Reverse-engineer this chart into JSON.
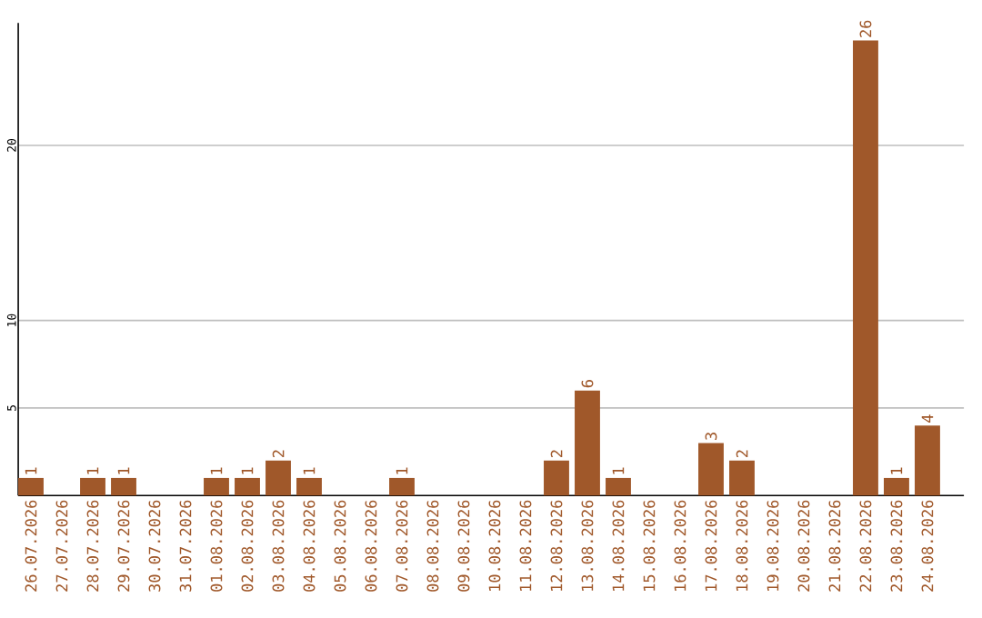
{
  "chart_data": {
    "type": "bar",
    "categories": [
      "26.07.2026",
      "27.07.2026",
      "28.07.2026",
      "29.07.2026",
      "30.07.2026",
      "31.07.2026",
      "01.08.2026",
      "02.08.2026",
      "03.08.2026",
      "04.08.2026",
      "05.08.2026",
      "06.08.2026",
      "07.08.2026",
      "08.08.2026",
      "09.08.2026",
      "10.08.2026",
      "11.08.2026",
      "12.08.2026",
      "13.08.2026",
      "14.08.2026",
      "15.08.2026",
      "16.08.2026",
      "17.08.2026",
      "18.08.2026",
      "19.08.2026",
      "20.08.2026",
      "21.08.2026",
      "22.08.2026",
      "23.08.2026",
      "24.08.2026"
    ],
    "values": [
      1,
      0,
      1,
      1,
      0,
      0,
      1,
      1,
      2,
      1,
      0,
      0,
      1,
      0,
      0,
      0,
      0,
      2,
      6,
      1,
      0,
      0,
      3,
      2,
      0,
      0,
      0,
      26,
      1,
      4
    ],
    "value_labels": [
      "1",
      null,
      "1",
      "1",
      null,
      null,
      "1",
      "1",
      "2",
      "1",
      null,
      null,
      "1",
      null,
      null,
      null,
      null,
      "2",
      "6",
      "1",
      null,
      null,
      "3",
      "2",
      null,
      null,
      null,
      "26",
      "1",
      "4"
    ],
    "color": "#a0582a",
    "ylim": [
      0,
      27
    ],
    "yticks": [
      5,
      10,
      20
    ],
    "grid": "y"
  }
}
